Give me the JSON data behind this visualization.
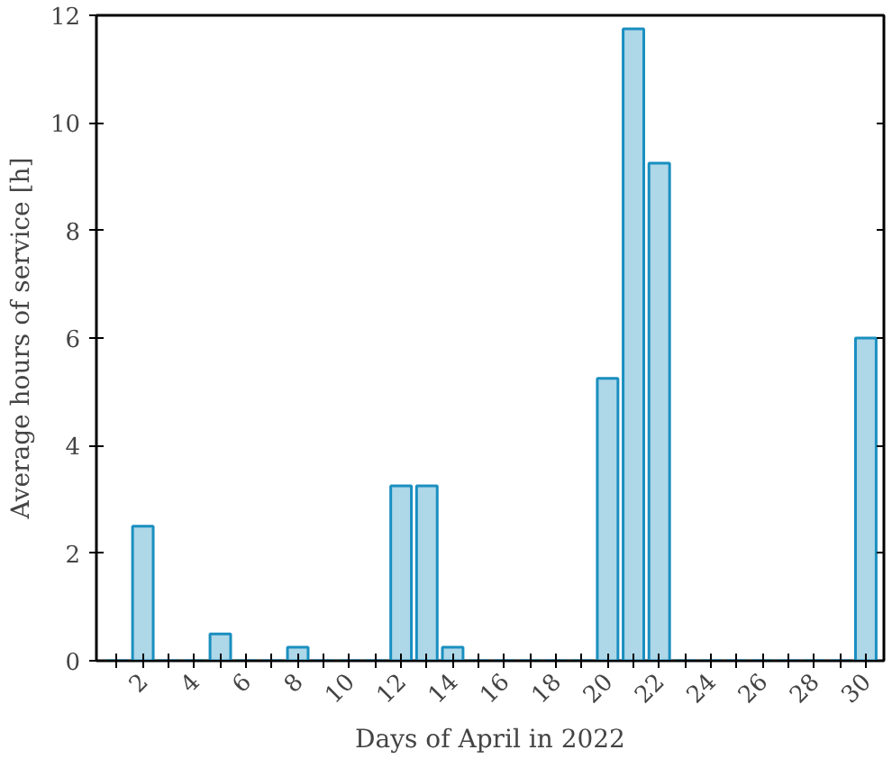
{
  "chart_data": {
    "type": "bar",
    "xlabel": "Days of April in 2022",
    "ylabel": "Average hours of service [h]",
    "x": [
      1,
      2,
      3,
      4,
      5,
      6,
      7,
      8,
      9,
      10,
      11,
      12,
      13,
      14,
      15,
      16,
      17,
      18,
      19,
      20,
      21,
      22,
      23,
      24,
      25,
      26,
      27,
      28,
      29,
      30
    ],
    "series": [
      {
        "color": "#1a8fc0",
        "values": [
          0,
          2.5,
          0,
          0,
          0.5,
          0,
          0,
          0.25,
          0,
          0,
          0,
          3.25,
          3.25,
          0.25,
          0,
          0,
          0,
          0,
          0,
          5.25,
          11.75,
          9.25,
          0,
          0,
          0,
          0,
          0,
          0,
          0,
          6
        ]
      }
    ],
    "xlim": [
      0.2,
      30.7
    ],
    "ylim": [
      0,
      12
    ],
    "xticks": [
      {
        "value": 1,
        "label": null
      },
      2,
      {
        "value": 3,
        "label": null
      },
      4,
      {
        "value": 5,
        "label": null
      },
      6,
      {
        "value": 7,
        "label": null
      },
      8,
      {
        "value": 9,
        "label": null
      },
      10,
      {
        "value": 11,
        "label": null
      },
      12,
      {
        "value": 13,
        "label": null
      },
      14,
      {
        "value": 15,
        "label": null
      },
      16,
      {
        "value": 17,
        "label": null
      },
      18,
      {
        "value": 19,
        "label": null
      },
      20,
      {
        "value": 21,
        "label": null
      },
      22,
      {
        "value": 23,
        "label": null
      },
      24,
      {
        "value": 25,
        "label": null
      },
      26,
      {
        "value": 27,
        "label": null
      },
      28,
      {
        "value": 29,
        "label": null
      },
      30
    ],
    "yticks": [
      0,
      2,
      4,
      6,
      8,
      10,
      12
    ],
    "grid": false
  }
}
